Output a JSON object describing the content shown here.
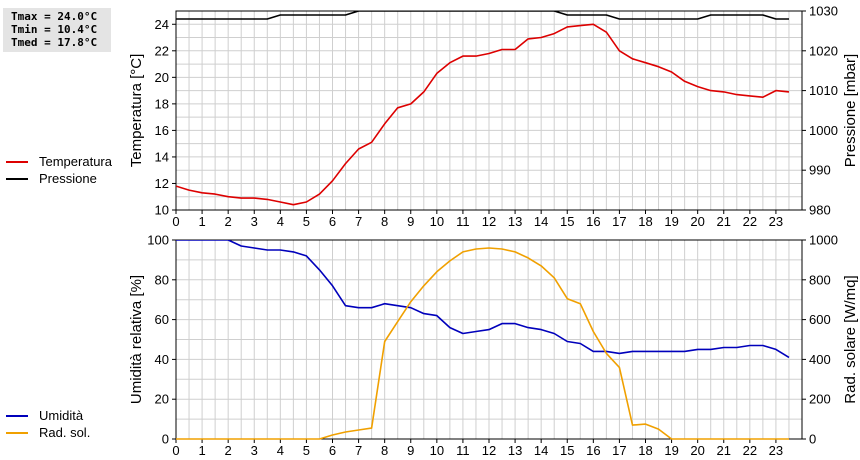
{
  "stats": {
    "tmax": "Tmax = 24.0°C",
    "tmin": "Tmin = 10.4°C",
    "tmed": "Tmed = 17.8°C"
  },
  "colors": {
    "temperature": "#dd0000",
    "pressure": "#000000",
    "humidity": "#0000bb",
    "solar": "#f0a000",
    "grid": "#cfcfcf"
  },
  "chart_data": [
    {
      "type": "line",
      "x_ticks": [
        "0",
        "1",
        "2",
        "3",
        "4",
        "5",
        "6",
        "7",
        "8",
        "9",
        "10",
        "11",
        "12",
        "13",
        "14",
        "15",
        "16",
        "17",
        "18",
        "19",
        "20",
        "21",
        "22",
        "23"
      ],
      "xlim": [
        0,
        24
      ],
      "ylabel": "Temperatura [°C]",
      "ylim": [
        10,
        25
      ],
      "y_ticks": [
        "10",
        "12",
        "14",
        "16",
        "18",
        "20",
        "22",
        "24"
      ],
      "y2label": "Pressione [mbar]",
      "y2lim": [
        980,
        1030
      ],
      "y2_ticks": [
        "980",
        "990",
        "1000",
        "1010",
        "1020",
        "1030"
      ],
      "legend_position": "left",
      "grid": true,
      "series": [
        {
          "name": "Temperatura",
          "axis": "left",
          "x": [
            0,
            0.5,
            1,
            1.5,
            2,
            2.5,
            3,
            3.5,
            4,
            4.5,
            5,
            5.5,
            6,
            6.5,
            7,
            7.5,
            8,
            8.5,
            9,
            9.5,
            10,
            10.5,
            11,
            11.5,
            12,
            12.5,
            13,
            13.5,
            14,
            14.5,
            15,
            15.5,
            16,
            16.5,
            17,
            17.5,
            18,
            18.5,
            19,
            19.5,
            20,
            20.5,
            21,
            21.5,
            22,
            22.5,
            23,
            23.5
          ],
          "values": [
            11.8,
            11.5,
            11.3,
            11.2,
            11.0,
            10.9,
            10.9,
            10.8,
            10.6,
            10.4,
            10.6,
            11.2,
            12.2,
            13.5,
            14.6,
            15.1,
            16.5,
            17.7,
            18.0,
            18.9,
            20.3,
            21.1,
            21.6,
            21.6,
            21.8,
            22.1,
            22.1,
            22.9,
            23.0,
            23.3,
            23.8,
            23.9,
            24.0,
            23.4,
            22.0,
            21.4,
            21.1,
            20.8,
            20.4,
            19.7,
            19.3,
            19.0,
            18.9,
            18.7,
            18.6,
            18.5,
            19.0,
            18.9
          ]
        },
        {
          "name": "Pressione",
          "axis": "right",
          "x": [
            0,
            0.5,
            1,
            1.5,
            2,
            2.5,
            3,
            3.5,
            4,
            4.5,
            5,
            5.5,
            6,
            6.5,
            7,
            7.5,
            8,
            8.5,
            9,
            9.5,
            10,
            10.5,
            11,
            11.5,
            12,
            12.5,
            13,
            13.5,
            14,
            14.5,
            15,
            15.5,
            16,
            16.5,
            17,
            17.5,
            18,
            18.5,
            19,
            19.5,
            20,
            20.5,
            21,
            21.5,
            22,
            22.5,
            23,
            23.5
          ],
          "values": [
            1028,
            1028,
            1028,
            1028,
            1028,
            1028,
            1028,
            1028,
            1029,
            1029,
            1029,
            1029,
            1029,
            1029,
            1030,
            1030,
            1030,
            1030,
            1030,
            1030,
            1030,
            1030,
            1030,
            1030,
            1030,
            1030,
            1030,
            1030,
            1030,
            1030,
            1029,
            1029,
            1029,
            1029,
            1028,
            1028,
            1028,
            1028,
            1028,
            1028,
            1028,
            1029,
            1029,
            1029,
            1029,
            1029,
            1028,
            1028
          ]
        }
      ]
    },
    {
      "type": "line",
      "x_ticks": [
        "0",
        "1",
        "2",
        "3",
        "4",
        "5",
        "6",
        "7",
        "8",
        "9",
        "10",
        "11",
        "12",
        "13",
        "14",
        "15",
        "16",
        "17",
        "18",
        "19",
        "20",
        "21",
        "22",
        "23"
      ],
      "xlim": [
        0,
        24
      ],
      "ylabel": "Umidità relativa [%]",
      "ylim": [
        0,
        100
      ],
      "y_ticks": [
        "0",
        "20",
        "40",
        "60",
        "80",
        "100"
      ],
      "y2label": "Rad. solare [W/mq]",
      "y2lim": [
        0,
        1000
      ],
      "y2_ticks": [
        "0",
        "200",
        "400",
        "600",
        "800",
        "1000"
      ],
      "legend_position": "left",
      "grid": true,
      "series": [
        {
          "name": "Umidità",
          "axis": "left",
          "x": [
            0,
            0.5,
            1,
            1.5,
            2,
            2.5,
            3,
            3.5,
            4,
            4.5,
            5,
            5.5,
            6,
            6.5,
            7,
            7.5,
            8,
            8.5,
            9,
            9.5,
            10,
            10.5,
            11,
            11.5,
            12,
            12.5,
            13,
            13.5,
            14,
            14.5,
            15,
            15.5,
            16,
            16.5,
            17,
            17.5,
            18,
            18.5,
            19,
            19.5,
            20,
            20.5,
            21,
            21.5,
            22,
            22.5,
            23,
            23.5
          ],
          "values": [
            100,
            100,
            100,
            100,
            100,
            97,
            96,
            95,
            95,
            94,
            92,
            85,
            77,
            67,
            66,
            66,
            68,
            67,
            66,
            63,
            62,
            56,
            53,
            54,
            55,
            58,
            58,
            56,
            55,
            53,
            49,
            48,
            44,
            44,
            43,
            44,
            44,
            44,
            44,
            44,
            45,
            45,
            46,
            46,
            47,
            47,
            45,
            41
          ]
        },
        {
          "name": "Rad. sol.",
          "axis": "right",
          "x": [
            0,
            0.5,
            1,
            1.5,
            2,
            2.5,
            3,
            3.5,
            4,
            4.5,
            5,
            5.5,
            6,
            6.5,
            7,
            7.5,
            8,
            8.5,
            9,
            9.5,
            10,
            10.5,
            11,
            11.5,
            12,
            12.5,
            13,
            13.5,
            14,
            14.5,
            15,
            15.5,
            16,
            16.5,
            17,
            17.5,
            18,
            18.5,
            19,
            19.5,
            20,
            20.5,
            21,
            21.5,
            22,
            22.5,
            23,
            23.5
          ],
          "values": [
            0,
            0,
            0,
            0,
            0,
            0,
            0,
            0,
            0,
            0,
            0,
            0,
            20,
            35,
            45,
            55,
            490,
            590,
            690,
            770,
            840,
            895,
            940,
            955,
            960,
            955,
            940,
            910,
            870,
            810,
            705,
            680,
            540,
            430,
            360,
            70,
            75,
            50,
            0,
            0,
            0,
            0,
            0,
            0,
            0,
            0,
            0,
            0
          ]
        }
      ]
    }
  ]
}
